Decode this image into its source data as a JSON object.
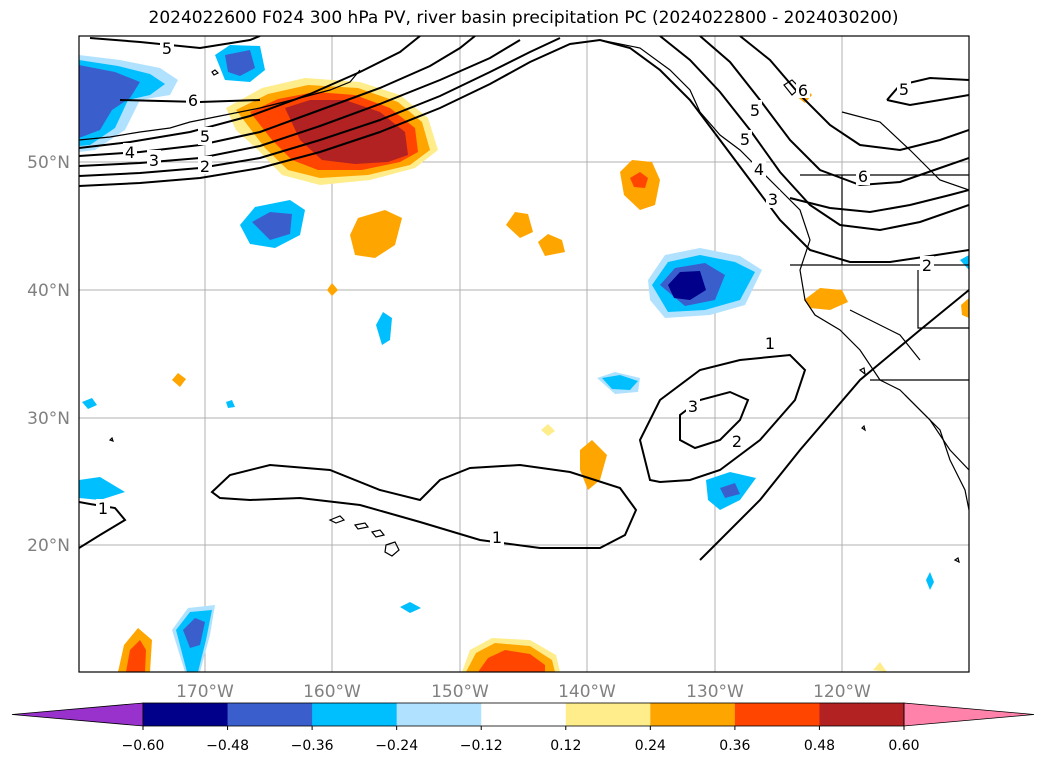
{
  "map": {
    "title": "2024022600 F024 300 hPa PV, river basin precipitation PC (2024022800 - 2024030200)",
    "lat_labels": [
      "50°N",
      "40°N",
      "30°N",
      "20°N"
    ],
    "lon_labels": [
      "170°W",
      "160°W",
      "150°W",
      "140°W",
      "130°W",
      "120°W"
    ],
    "contour_labels": [
      "5",
      "6",
      "5",
      "4",
      "3",
      "2",
      "5",
      "5",
      "6",
      "6",
      "5",
      "4",
      "3",
      "2",
      "1",
      "3",
      "2",
      "1",
      "1"
    ],
    "colorbar": {
      "tick_labels": [
        "−0.60",
        "−0.48",
        "−0.36",
        "−0.24",
        "−0.12",
        "0.12",
        "0.24",
        "0.36",
        "0.48",
        "0.60"
      ],
      "colors": [
        "#9932cc",
        "#00008b",
        "#3a5fcd",
        "#00bfff",
        "#b0e2ff",
        "#ffffff",
        "#ffec8b",
        "#ffa500",
        "#ff4500",
        "#b22222",
        "#ff82ab"
      ]
    }
  }
}
